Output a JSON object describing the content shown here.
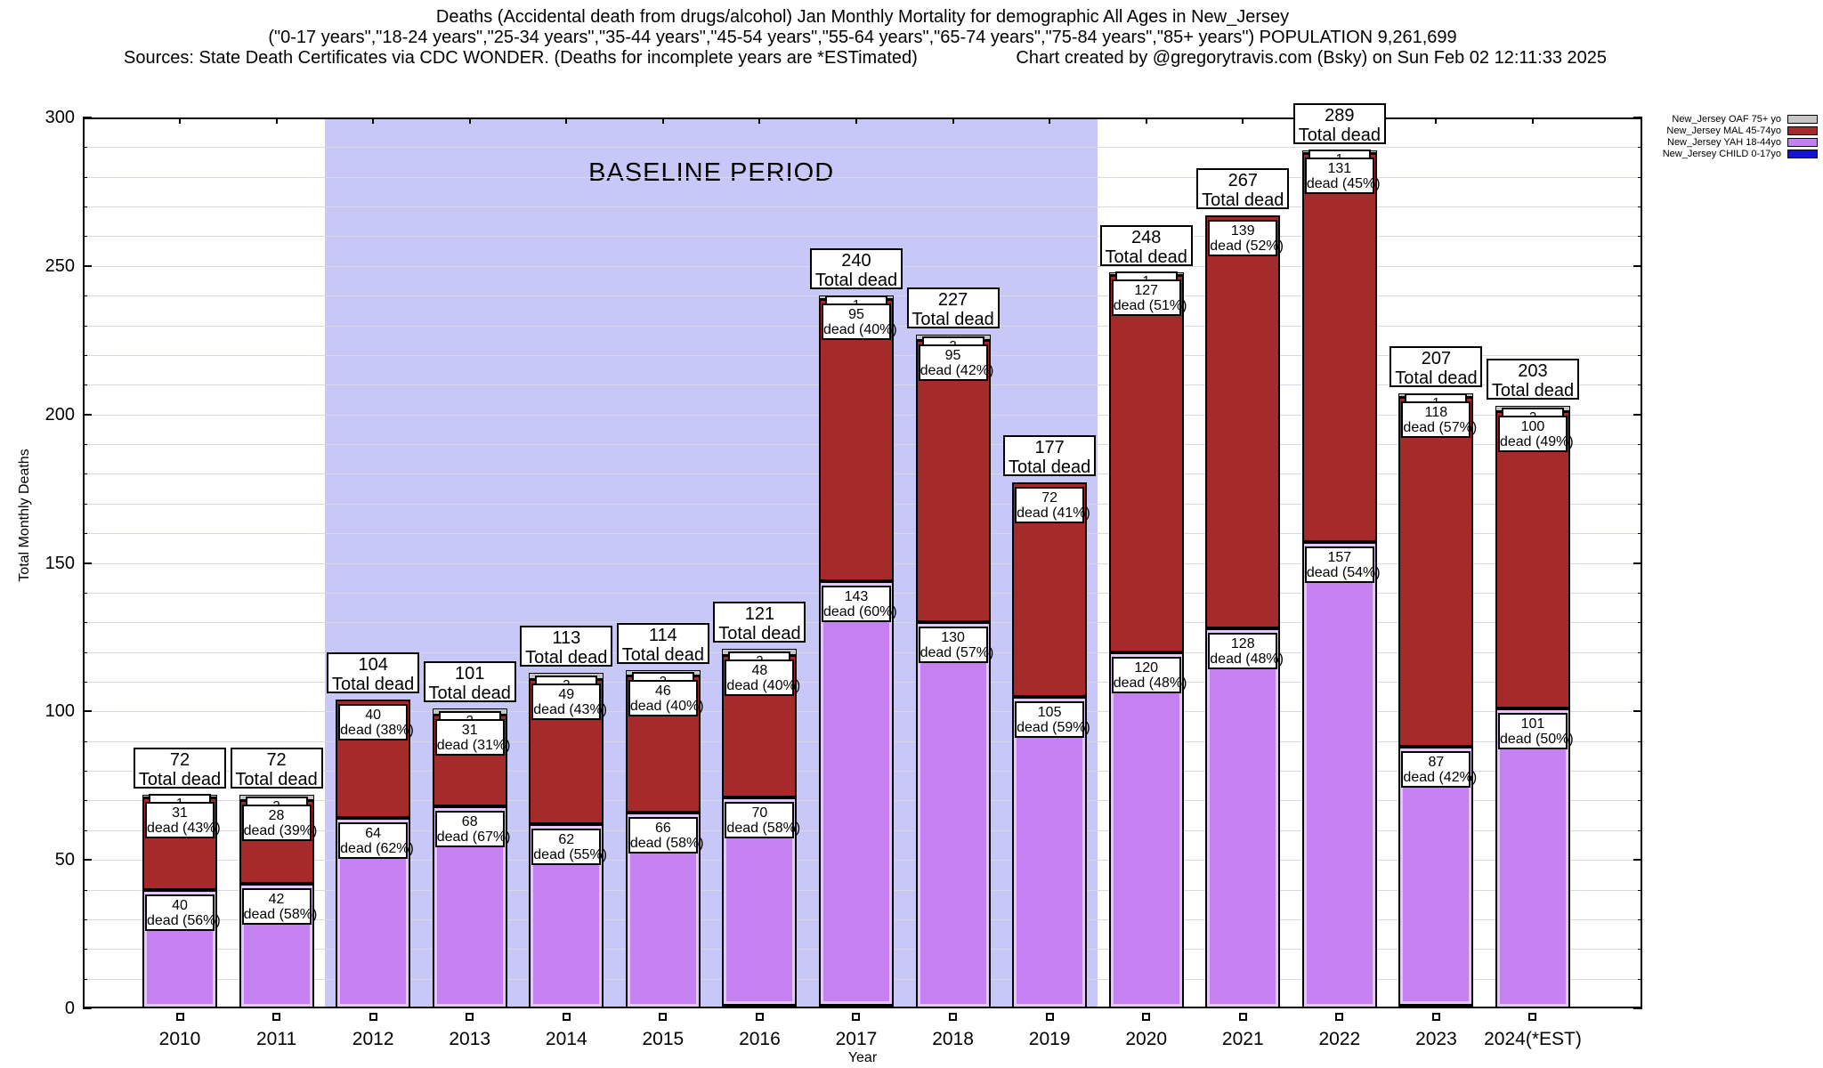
{
  "header": {
    "title_line1": "Deaths (Accidental death from drugs/alcohol) Jan Monthly Mortality for demographic All Ages in New_Jersey",
    "title_line2": "(\"0-17 years\",\"18-24 years\",\"25-34 years\",\"35-44 years\",\"45-54 years\",\"55-64 years\",\"65-74 years\",\"75-84 years\",\"85+ years\") POPULATION 9,261,699",
    "sources": "Sources: State Death Certificates via CDC WONDER. (Deaths for incomplete years are *ESTimated)",
    "credit": "Chart created by @gregorytravis.com (Bsky) on Sun Feb 02 12:11:33 2025"
  },
  "chart_data": {
    "type": "bar",
    "stacked": true,
    "title": "Deaths (Accidental death from drugs/alcohol) Jan Monthly Mortality for demographic All Ages in New_Jersey",
    "subtitle": "(\"0-17 years\",\"18-24 years\",\"25-34 years\",\"35-44 years\",\"45-54 years\",\"55-64 years\",\"65-74 years\",\"75-84 years\",\"85+ years\") POPULATION 9,261,699",
    "xlabel": "Year",
    "ylabel": "Total Monthly Deaths",
    "ylim": [
      0,
      300
    ],
    "yticks": [
      0,
      50,
      100,
      150,
      200,
      250,
      300
    ],
    "grid_interval": 10,
    "legend_position": "top-right-outside",
    "baseline_period": {
      "label": "BASELINE PERIOD",
      "start_year": "2012",
      "end_year": "2019",
      "fill_color": "#c8c8f8"
    },
    "categories": [
      "2010",
      "2011",
      "2012",
      "2013",
      "2014",
      "2015",
      "2016",
      "2017",
      "2018",
      "2019",
      "2020",
      "2021",
      "2022",
      "2023",
      "2024(*EST)"
    ],
    "totals": [
      72,
      72,
      104,
      101,
      113,
      114,
      121,
      240,
      227,
      177,
      248,
      267,
      289,
      207,
      203
    ],
    "total_caption": "Total dead",
    "series": [
      {
        "name": "New_Jersey CHILD 0-17yo",
        "color": "#1414cc",
        "values": [
          0,
          0,
          0,
          0,
          0,
          0,
          1,
          1,
          0,
          0,
          0,
          0,
          0,
          1,
          0
        ]
      },
      {
        "name": "New_Jersey YAH 18-44yo",
        "color": "#c581f2",
        "values": [
          40,
          42,
          64,
          68,
          62,
          66,
          70,
          143,
          130,
          105,
          120,
          128,
          157,
          87,
          101
        ]
      },
      {
        "name": "New_Jersey MAL 45-74yo",
        "color": "#a52a2a",
        "values": [
          31,
          28,
          40,
          31,
          49,
          46,
          48,
          95,
          95,
          72,
          127,
          139,
          131,
          118,
          100
        ]
      },
      {
        "name": "New_Jersey OAF 75+ yo",
        "color": "#c6c6c6",
        "values": [
          1,
          2,
          0,
          2,
          2,
          2,
          2,
          1,
          2,
          0,
          1,
          0,
          1,
          1,
          2
        ]
      }
    ],
    "bars": [
      {
        "year": "2010",
        "total": "72",
        "child": 0,
        "yah": 40,
        "mal": 31,
        "oaf": 1,
        "mal_n": "31",
        "mal_pct": "dead (43%)",
        "yah_n": "40",
        "yah_pct": "dead (56%)"
      },
      {
        "year": "2011",
        "total": "72",
        "child": 0,
        "yah": 42,
        "mal": 28,
        "oaf": 2,
        "mal_n": "28",
        "mal_pct": "dead (39%)",
        "yah_n": "42",
        "yah_pct": "dead (58%)"
      },
      {
        "year": "2012",
        "total": "104",
        "child": 0,
        "yah": 64,
        "mal": 40,
        "oaf": 0,
        "mal_n": "40",
        "mal_pct": "dead (38%)",
        "yah_n": "64",
        "yah_pct": "dead (62%)"
      },
      {
        "year": "2013",
        "total": "101",
        "child": 0,
        "yah": 68,
        "mal": 31,
        "oaf": 2,
        "mal_n": "31",
        "mal_pct": "dead (31%)",
        "yah_n": "68",
        "yah_pct": "dead (67%)"
      },
      {
        "year": "2014",
        "total": "113",
        "child": 0,
        "yah": 62,
        "mal": 49,
        "oaf": 2,
        "mal_n": "49",
        "mal_pct": "dead (43%)",
        "yah_n": "62",
        "yah_pct": "dead (55%)"
      },
      {
        "year": "2015",
        "total": "114",
        "child": 0,
        "yah": 66,
        "mal": 46,
        "oaf": 2,
        "mal_n": "46",
        "mal_pct": "dead (40%)",
        "yah_n": "66",
        "yah_pct": "dead (58%)"
      },
      {
        "year": "2016",
        "total": "121",
        "child": 1,
        "yah": 70,
        "mal": 48,
        "oaf": 2,
        "mal_n": "48",
        "mal_pct": "dead (40%)",
        "yah_n": "70",
        "yah_pct": "dead (58%)"
      },
      {
        "year": "2017",
        "total": "240",
        "child": 1,
        "yah": 143,
        "mal": 95,
        "oaf": 1,
        "mal_n": "95",
        "mal_pct": "dead (40%)",
        "yah_n": "143",
        "yah_pct": "dead (60%)"
      },
      {
        "year": "2018",
        "total": "227",
        "child": 0,
        "yah": 130,
        "mal": 95,
        "oaf": 2,
        "mal_n": "95",
        "mal_pct": "dead (42%)",
        "yah_n": "130",
        "yah_pct": "dead (57%)"
      },
      {
        "year": "2019",
        "total": "177",
        "child": 0,
        "yah": 105,
        "mal": 72,
        "oaf": 0,
        "mal_n": "72",
        "mal_pct": "dead (41%)",
        "yah_n": "105",
        "yah_pct": "dead (59%)"
      },
      {
        "year": "2020",
        "total": "248",
        "child": 0,
        "yah": 120,
        "mal": 127,
        "oaf": 1,
        "mal_n": "127",
        "mal_pct": "dead (51%)",
        "yah_n": "120",
        "yah_pct": "dead (48%)"
      },
      {
        "year": "2021",
        "total": "267",
        "child": 0,
        "yah": 128,
        "mal": 139,
        "oaf": 0,
        "mal_n": "139",
        "mal_pct": "dead (52%)",
        "yah_n": "128",
        "yah_pct": "dead (48%)"
      },
      {
        "year": "2022",
        "total": "289",
        "child": 0,
        "yah": 157,
        "mal": 131,
        "oaf": 1,
        "mal_n": "131",
        "mal_pct": "dead (45%)",
        "yah_n": "157",
        "yah_pct": "dead (54%)"
      },
      {
        "year": "2023",
        "total": "207",
        "child": 1,
        "yah": 87,
        "mal": 118,
        "oaf": 1,
        "mal_n": "118",
        "mal_pct": "dead (57%)",
        "yah_n": "87",
        "yah_pct": "dead (42%)"
      },
      {
        "year": "2024(*EST)",
        "total": "203",
        "child": 0,
        "yah": 101,
        "mal": 100,
        "oaf": 2,
        "mal_n": "100",
        "mal_pct": "dead (49%)",
        "yah_n": "101",
        "yah_pct": "dead (50%)"
      }
    ]
  },
  "legend": {
    "items": [
      {
        "label": "New_Jersey OAF 75+ yo",
        "color": "#c6c6c6"
      },
      {
        "label": "New_Jersey MAL 45-74yo",
        "color": "#a52a2a"
      },
      {
        "label": "New_Jersey YAH 18-44yo",
        "color": "#c581f2"
      },
      {
        "label": "New_Jersey CHILD 0-17yo",
        "color": "#1414cc"
      }
    ]
  }
}
